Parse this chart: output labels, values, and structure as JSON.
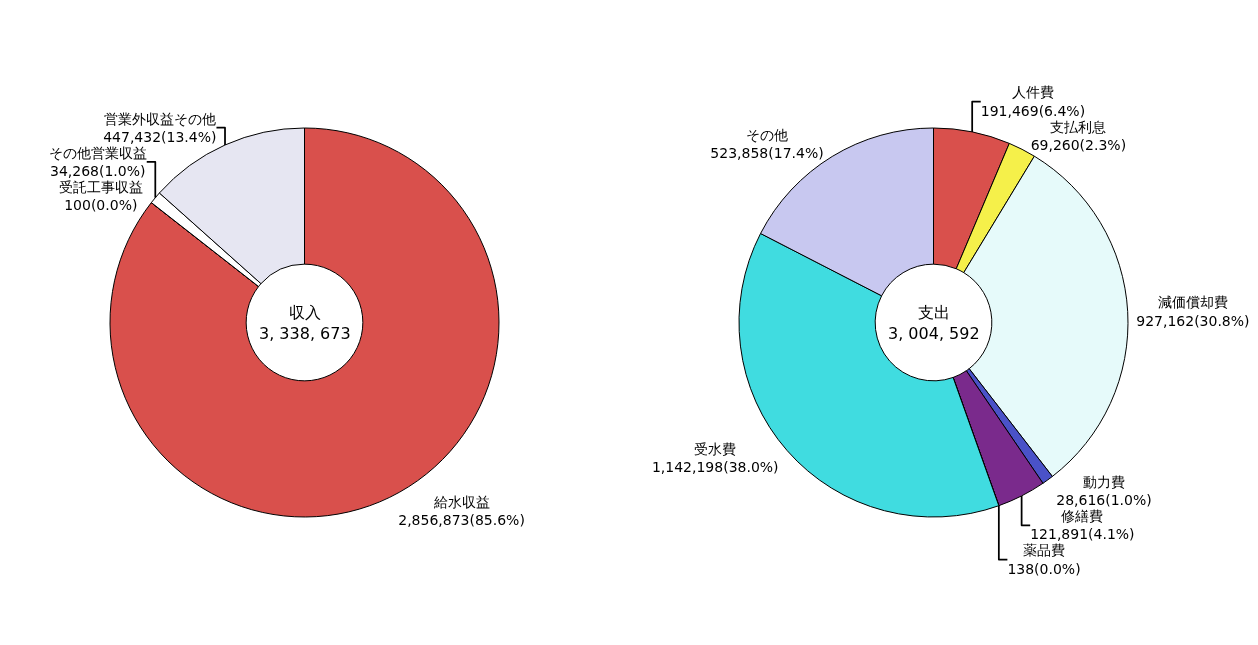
{
  "chart_data": [
    {
      "type": "donut",
      "annotations": [
        "収入",
        "3, 338, 673"
      ],
      "categories": [
        "給水収益",
        "受託工事収益",
        "その他営業収益",
        "営業外収益その他"
      ],
      "values": [
        2856873,
        100,
        34268,
        447432
      ],
      "value_labels": [
        "2,856,873(85.6%)",
        "100(0.0%)",
        "34,268(1.0%)",
        "447,432(13.4%)"
      ],
      "colors": [
        "#d9504c",
        "#ffffff",
        "#ffffff",
        "#e6e6f2"
      ],
      "legend": false
    },
    {
      "type": "donut",
      "annotations": [
        "支出",
        "3, 004, 592"
      ],
      "categories": [
        "人件費",
        "支払利息",
        "減価償却費",
        "動力費",
        "修繕費",
        "薬品費",
        "受水費",
        "その他"
      ],
      "values": [
        191469,
        69260,
        927162,
        28616,
        121891,
        138,
        1142198,
        523858
      ],
      "value_labels": [
        "191,469(6.4%)",
        "69,260(2.3%)",
        "927,162(30.8%)",
        "28,616(1.0%)",
        "121,891(4.1%)",
        "138(0.0%)",
        "1,142,198(38.0%)",
        "523,858(17.4%)"
      ],
      "colors": [
        "#d9504c",
        "#f5f04a",
        "#e6fafa",
        "#4a52c8",
        "#7a2a8c",
        "#ffffff",
        "#40dce0",
        "#c8c8f0"
      ],
      "legend": false
    }
  ]
}
